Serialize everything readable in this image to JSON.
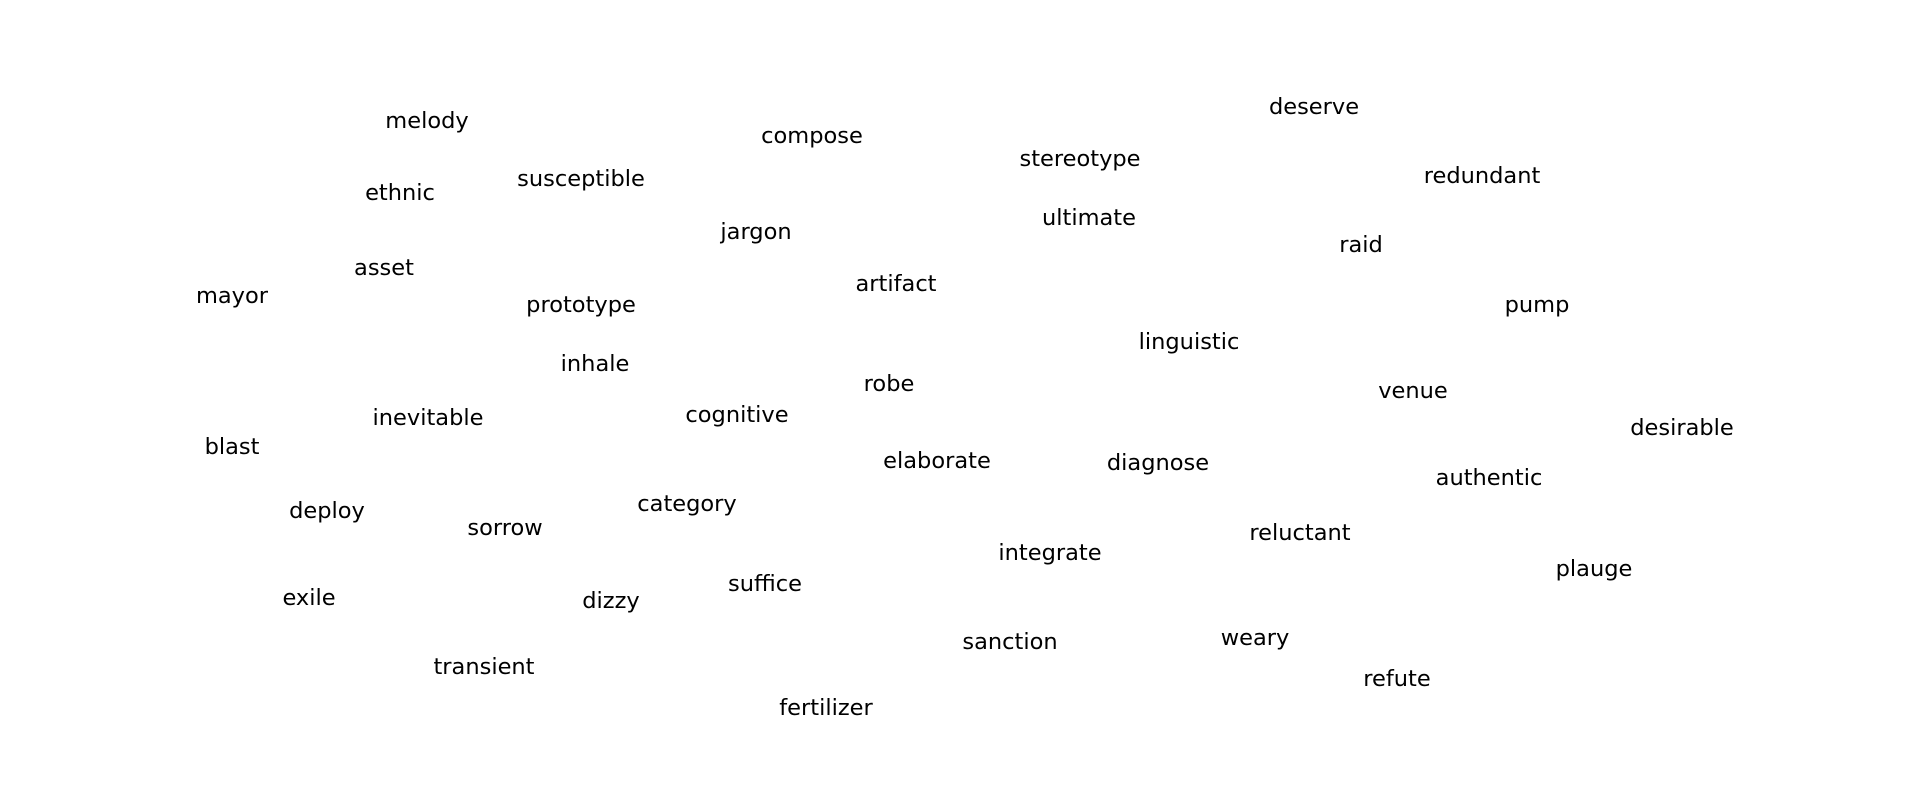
{
  "words": [
    "melody",
    "compose",
    "deserve",
    "stereotype",
    "redundant",
    "ethnic",
    "susceptible",
    "jargon",
    "ultimate",
    "raid",
    "asset",
    "mayor",
    "prototype",
    "artifact",
    "pump",
    "linguistic",
    "inhale",
    "robe",
    "venue",
    "inevitable",
    "cognitive",
    "desirable",
    "blast",
    "elaborate",
    "diagnose",
    "authentic",
    "deploy",
    "category",
    "sorrow",
    "reluctant",
    "integrate",
    "plauge",
    "suffice",
    "exile",
    "dizzy",
    "sanction",
    "weary",
    "transient",
    "refute",
    "fertilizer"
  ],
  "colors": {
    "text": "#000000",
    "background": "#ffffff"
  }
}
